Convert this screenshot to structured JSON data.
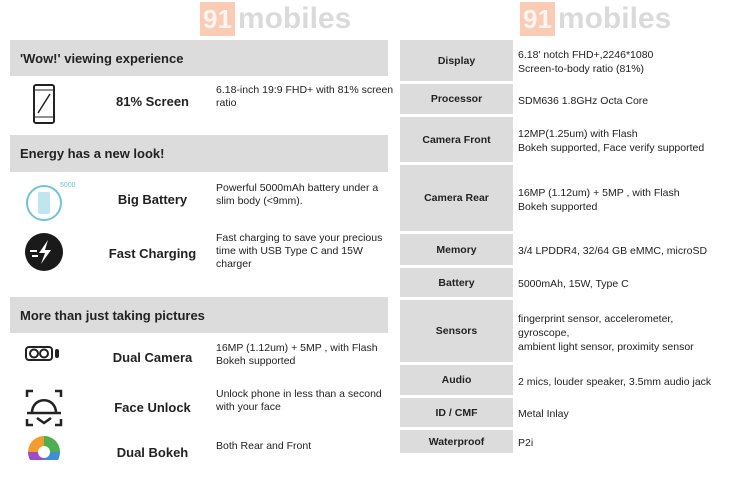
{
  "sections": [
    {
      "title": "'Wow!' viewing experience"
    },
    {
      "title": "Energy has a new look!"
    },
    {
      "title": "More than just taking pictures"
    }
  ],
  "features": [
    {
      "name": "81% Screen",
      "desc": "6.18-inch 19:9 FHD+ with 81% screen ratio",
      "icon": "phone-diagonal-icon"
    },
    {
      "name": "Big Battery",
      "desc": "Powerful 5000mAh battery under a slim body (<9mm).",
      "icon": "battery-icon",
      "badge": "5000"
    },
    {
      "name": "Fast Charging",
      "desc": "Fast charging to save your precious time with USB Type C and 15W charger",
      "icon": "lightning-icon"
    },
    {
      "name": "Dual Camera",
      "desc": "16MP (1.12um) + 5MP  , with Flash Bokeh supported",
      "icon": "dual-camera-icon"
    },
    {
      "name": "Face Unlock",
      "desc": "Unlock phone in less than a second with your face",
      "icon": "face-scan-icon"
    },
    {
      "name": "Dual Bokeh",
      "desc": "Both Rear and Front",
      "icon": "aperture-icon"
    }
  ],
  "specs": [
    {
      "label": "Display",
      "lines": [
        "6.18' notch FHD+,2246*1080",
        "Screen-to-body ratio (81%)"
      ]
    },
    {
      "label": "Processor",
      "lines": [
        "SDM636 1.8GHz Octa Core"
      ]
    },
    {
      "label": "Camera Front",
      "lines": [
        "12MP(1.25um) with Flash",
        "Bokeh supported,  Face verify supported"
      ]
    },
    {
      "label": "Camera Rear",
      "lines": [
        "16MP (1.12um) + 5MP  , with Flash",
        "Bokeh supported"
      ]
    },
    {
      "label": "Memory",
      "lines": [
        "3/4 LPDDR4, 32/64 GB eMMC, microSD"
      ]
    },
    {
      "label": "Battery",
      "lines": [
        "5000mAh, 15W,  Type C"
      ]
    },
    {
      "label": "Sensors",
      "lines": [
        "fingerprint sensor,  accelerometer,",
        "gyroscope,",
        "ambient light sensor, proximity sensor"
      ]
    },
    {
      "label": "Audio",
      "lines": [
        "2 mics, louder speaker, 3.5mm audio jack"
      ]
    },
    {
      "label": "ID / CMF",
      "lines": [
        "Metal Inlay"
      ]
    },
    {
      "label": "Waterproof",
      "lines": [
        "P2i"
      ]
    }
  ],
  "watermark": {
    "num": "91",
    "text": "mobiles"
  }
}
